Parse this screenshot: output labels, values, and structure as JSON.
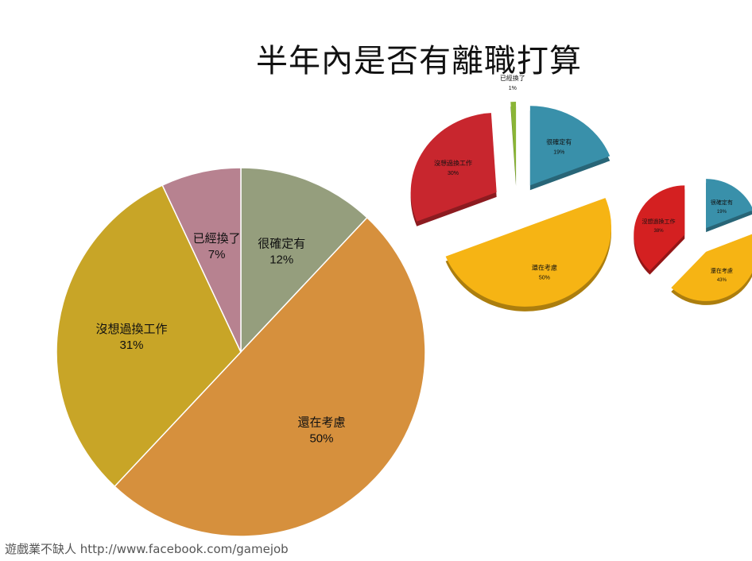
{
  "title": "半年內是否有離職打算",
  "footer": "遊戲業不缺人 http://www.facebook.com/gamejob",
  "chart_data": [
    {
      "type": "pie",
      "slices": [
        {
          "label": "很確定有",
          "value": 12,
          "pct": "12%",
          "color": "#959e7d"
        },
        {
          "label": "還在考慮",
          "value": 50,
          "pct": "50%",
          "color": "#d6903d"
        },
        {
          "label": "沒想過換工作",
          "value": 31,
          "pct": "31%",
          "color": "#c8a527"
        },
        {
          "label": "已經換了",
          "value": 7,
          "pct": "7%",
          "color": "#b78290"
        }
      ]
    },
    {
      "type": "pie",
      "exploded": true,
      "slices": [
        {
          "label": "很確定有",
          "value": 19,
          "pct": "19%",
          "color": "#3990aa"
        },
        {
          "label": "還在考慮",
          "value": 50,
          "pct": "50%",
          "color": "#f6b414"
        },
        {
          "label": "沒想過換工作",
          "value": 30,
          "pct": "30%",
          "color": "#c8262e"
        },
        {
          "label": "已經換了",
          "value": 1,
          "pct": "1%",
          "color": "#8ab536"
        }
      ]
    },
    {
      "type": "pie",
      "exploded": true,
      "slices": [
        {
          "label": "很確定有",
          "value": 19,
          "pct": "19%",
          "color": "#3990aa"
        },
        {
          "label": "還在考慮",
          "value": 43,
          "pct": "43%",
          "color": "#f6b414"
        },
        {
          "label": "沒想過換工作",
          "value": 38,
          "pct": "38%",
          "color": "#d42021"
        }
      ]
    }
  ]
}
